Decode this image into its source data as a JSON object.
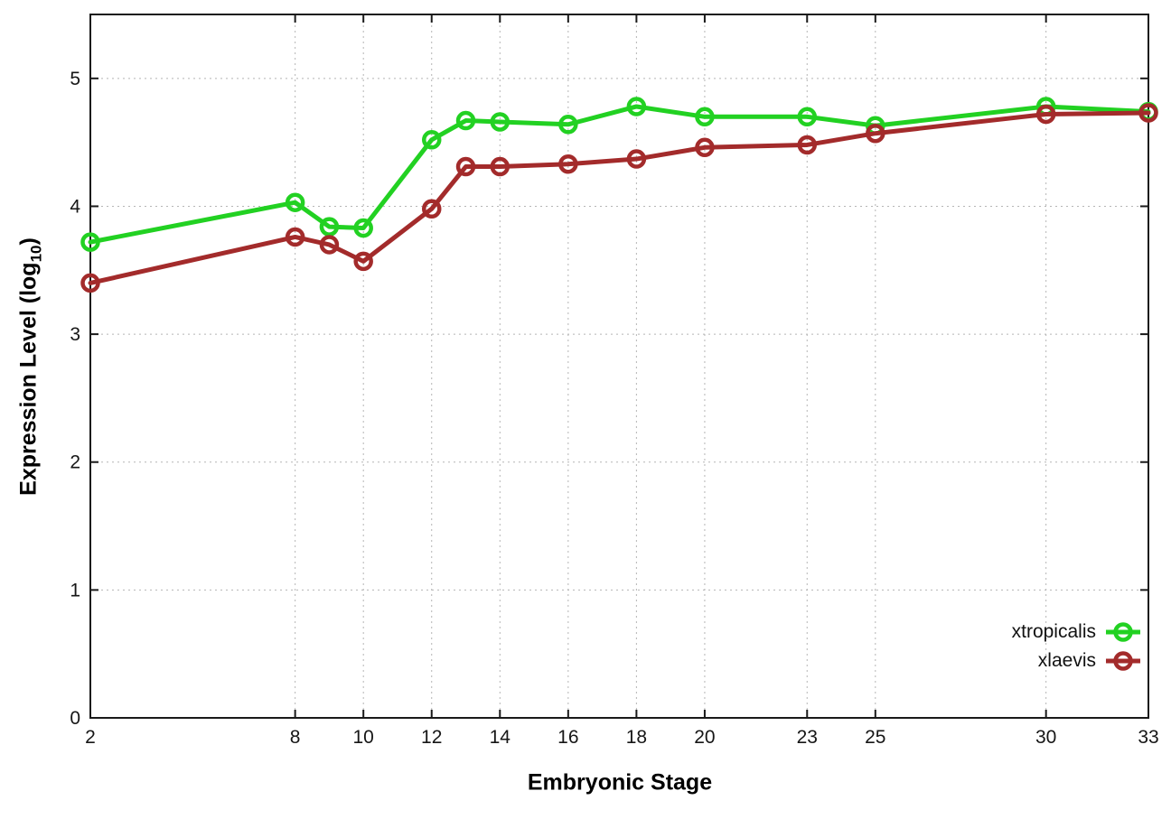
{
  "chart_data": {
    "type": "line",
    "title": "",
    "xlabel": "Embryonic Stage",
    "ylabel": "Expression Level (log10)",
    "ylabel_parts": {
      "main": "Expression Level (log",
      "sub": "10",
      "end": ")"
    },
    "x": [
      2,
      8,
      9,
      10,
      12,
      13,
      14,
      16,
      18,
      20,
      23,
      25,
      30,
      33
    ],
    "xticks": [
      "2",
      "8",
      "10",
      "12",
      "14",
      "16",
      "18",
      "20",
      "23",
      "25",
      "30",
      "33"
    ],
    "xtick_values": [
      2,
      8,
      10,
      12,
      14,
      16,
      18,
      20,
      23,
      25,
      30,
      33
    ],
    "yticks": [
      "0",
      "1",
      "2",
      "3",
      "4",
      "5"
    ],
    "ytick_values": [
      0,
      1,
      2,
      3,
      4,
      5
    ],
    "xlim": [
      2,
      33
    ],
    "ylim": [
      0,
      5.5
    ],
    "grid": true,
    "legend_position": "inside-right-bottom",
    "series": [
      {
        "name": "xtropicalis",
        "color": "#22d122",
        "values": [
          3.72,
          4.03,
          3.84,
          3.83,
          4.52,
          4.67,
          4.66,
          4.64,
          4.78,
          4.7,
          4.7,
          4.63,
          4.78,
          4.74
        ]
      },
      {
        "name": "xlaevis",
        "color": "#a32b2b",
        "values": [
          3.4,
          3.76,
          3.7,
          3.57,
          3.98,
          4.31,
          4.31,
          4.33,
          4.37,
          4.46,
          4.48,
          4.57,
          4.72,
          4.73
        ]
      }
    ]
  }
}
